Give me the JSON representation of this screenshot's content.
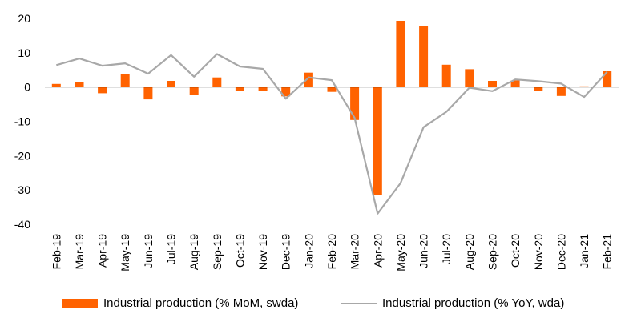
{
  "chart_data": {
    "type": "bar+line",
    "title": "",
    "xlabel": "",
    "ylabel": "",
    "ylim": [
      -40,
      20
    ],
    "yticks": [
      20,
      10,
      0,
      -10,
      -20,
      -30,
      -40
    ],
    "grid": false,
    "legend_position": "bottom",
    "categories": [
      "Feb-19",
      "Mar-19",
      "Apr-19",
      "May-19",
      "Jun-19",
      "Jul-19",
      "Aug-19",
      "Sep-19",
      "Oct-19",
      "Nov-19",
      "Dec-19",
      "Jan-20",
      "Feb-20",
      "Mar-20",
      "Apr-20",
      "May-20",
      "Jun-20",
      "Jul-20",
      "Aug-20",
      "Sep-20",
      "Oct-20",
      "Nov-20",
      "Dec-20",
      "Jan-21",
      "Feb-21"
    ],
    "series": [
      {
        "name": "Industrial production (% MoM, swda)",
        "type": "bar",
        "color": "#FF6200",
        "values": [
          0.9,
          1.4,
          -1.8,
          3.7,
          -3.6,
          1.8,
          -2.3,
          2.8,
          -1.2,
          -1.0,
          -2.7,
          4.2,
          -1.4,
          -9.6,
          -31.5,
          19.3,
          17.7,
          6.5,
          5.2,
          1.8,
          1.9,
          -1.2,
          -2.6,
          0.2,
          4.6
        ]
      },
      {
        "name": "Industrial production (% YoY, wda)",
        "type": "line",
        "color": "#A8A8A8",
        "values": [
          6.4,
          8.3,
          6.2,
          6.9,
          3.9,
          9.3,
          3.0,
          9.6,
          6.0,
          5.3,
          -3.4,
          2.8,
          2.0,
          -9.0,
          -36.9,
          -28.0,
          -11.7,
          -7.2,
          -0.2,
          -1.2,
          2.2,
          1.7,
          1.0,
          -2.9,
          4.4
        ]
      }
    ]
  }
}
